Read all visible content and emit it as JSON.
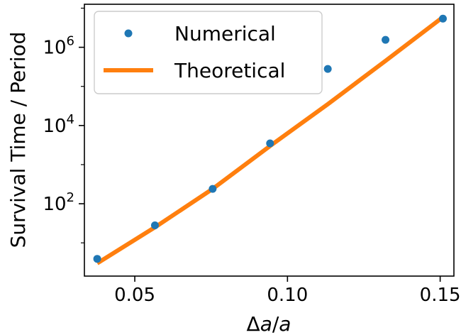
{
  "chart_data": {
    "type": "scatter",
    "xlabel_parts": [
      "Δ",
      "a",
      "/",
      "a"
    ],
    "ylabel": "Survival Time / Period",
    "xlim": [
      0.0335,
      0.1545
    ],
    "ylim_log10": [
      0.15,
      7.1
    ],
    "y_scale": "log",
    "x_ticks": [
      {
        "value": 0.05,
        "label": "0.05"
      },
      {
        "value": 0.1,
        "label": "0.10"
      },
      {
        "value": 0.15,
        "label": "0.15"
      }
    ],
    "y_ticks": [
      {
        "value": 100,
        "base": "10",
        "exp": "2"
      },
      {
        "value": 10000,
        "base": "10",
        "exp": "4"
      },
      {
        "value": 1000000,
        "base": "10",
        "exp": "6"
      }
    ],
    "series": [
      {
        "name": "Numerical",
        "kind": "points",
        "color": "#1f77b4",
        "x": [
          0.0377,
          0.0566,
          0.0755,
          0.0943,
          0.1132,
          0.1321,
          0.1509
        ],
        "y": [
          3.9,
          28,
          240,
          3500,
          280000,
          1550000,
          5400000
        ]
      },
      {
        "name": "Theoretical",
        "kind": "line",
        "color": "#ff7f0e",
        "x": [
          0.0377,
          0.0566,
          0.0755,
          0.0943,
          0.1132,
          0.1321,
          0.1509
        ],
        "y": [
          3.0,
          25,
          240,
          3000,
          35000,
          450000,
          5900000
        ]
      }
    ],
    "legend": {
      "placement": "upper-left",
      "entries": [
        "Numerical",
        "Theoretical"
      ]
    },
    "grid": false
  }
}
